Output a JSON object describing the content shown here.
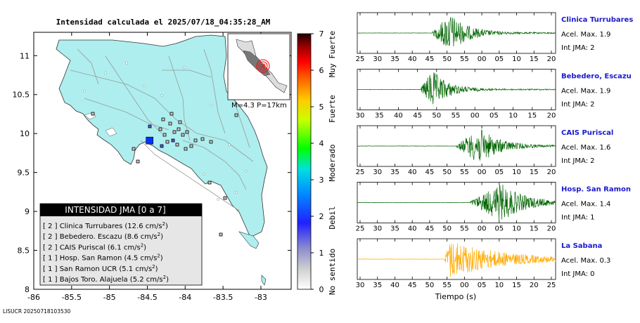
{
  "map": {
    "title": "Intensidad calculada el 2025/07/18_04:35:28_AM",
    "footer": "LISUCR 20250718103530",
    "inset_label": "M=4.3 P=17km",
    "legend": {
      "title": "INTENSIDAD JMA [0 a 7]",
      "items": [
        {
          "level": "[ 2 ]",
          "text": "Clinica Turrubares (12.6 cm/s",
          "sup": "2",
          "close": ")"
        },
        {
          "level": "[ 2 ]",
          "text": "Bebedero. Escazu (8.6 cm/s",
          "sup": "2",
          "close": ")"
        },
        {
          "level": "[ 2 ]",
          "text": "CAIS Puriscal (6.1 cm/s",
          "sup": "2",
          "close": ")"
        },
        {
          "level": "[ 1 ]",
          "text": "Hosp. San Ramon (4.5 cm/s",
          "sup": "2",
          "close": ")"
        },
        {
          "level": "[ 1 ]",
          "text": "San Ramon UCR (5.1 cm/s",
          "sup": "2",
          "close": ")"
        },
        {
          "level": "[ 1 ]",
          "text": "Bajos Toro. Alajuela (5.2 cm/s",
          "sup": "2",
          "close": ")"
        }
      ]
    },
    "colorbar": {
      "ticks": [
        "0",
        "1",
        "2",
        "3",
        "4",
        "5",
        "6",
        "7"
      ],
      "labels": [
        "No sentido",
        "Debil",
        "Moderado",
        "Fuerte",
        "Muy Fuerte"
      ]
    },
    "colors": {
      "land": "#aeeeee",
      "epicenter": "#0033ff",
      "legend_header": "#000000"
    }
  },
  "chart_data": [
    {
      "type": "scatter",
      "role": "map",
      "xlim": [
        -86,
        -82.6
      ],
      "ylim": [
        8,
        11.3
      ],
      "xticks": [
        -86,
        -85.5,
        -85,
        -84.5,
        -84,
        -83.5,
        -83
      ],
      "xtick_labels": [
        "-86",
        "-85.5",
        "-85",
        "-84.5",
        "-84",
        "-83.5",
        "-83"
      ],
      "yticks": [
        8,
        8.5,
        9,
        9.5,
        10,
        10.5,
        11
      ],
      "ytick_labels": [
        "8",
        "8.5",
        "9",
        "9.5",
        "10",
        "10.5",
        "11"
      ],
      "epicenter": {
        "lon": -84.47,
        "lat": 9.91
      }
    }
  ],
  "waveforms": {
    "xlabel": "Tiempo (s)",
    "panels": [
      {
        "name": "Clinica Turrubares",
        "acel": "Acel. Max. 1.9",
        "int": "Int JMA: 2",
        "color": "#006400",
        "ticks": [
          "25",
          "30",
          "35",
          "40",
          "45",
          "50",
          "55",
          "00",
          "05",
          "10",
          "15",
          "20"
        ],
        "onset": 0.38,
        "peak": 0.47,
        "amp": 1.0,
        "decay": 0.09,
        "width": 0.55
      },
      {
        "name": "Bebedero, Escazu",
        "acel": "Acel. Max. 1.9",
        "int": "Int JMA: 2",
        "color": "#006400",
        "ticks": [
          "30",
          "35",
          "40",
          "45",
          "50",
          "55",
          "00",
          "05",
          "10",
          "15",
          "20"
        ],
        "onset": 0.32,
        "peak": 0.38,
        "amp": 1.0,
        "decay": 0.08,
        "width": 0.5
      },
      {
        "name": "CAIS Puriscal",
        "acel": "Acel. Max. 1.6",
        "int": "Int JMA: 2",
        "color": "#006400",
        "ticks": [
          "25",
          "30",
          "35",
          "40",
          "45",
          "50",
          "55",
          "00",
          "05",
          "10",
          "15",
          "20"
        ],
        "onset": 0.5,
        "peak": 0.62,
        "amp": 0.9,
        "decay": 0.1,
        "width": 0.5
      },
      {
        "name": "Hosp. San Ramon",
        "acel": "Acel. Max. 1.4",
        "int": "Int JMA: 1",
        "color": "#006400",
        "ticks": [
          "25",
          "30",
          "35",
          "40",
          "45",
          "50",
          "55",
          "00",
          "05",
          "10",
          "15",
          "20"
        ],
        "onset": 0.57,
        "peak": 0.73,
        "amp": 0.95,
        "decay": 0.12,
        "width": 0.45
      },
      {
        "name": "La Sabana",
        "acel": "Acel. Max. 0.3",
        "int": "Int JMA: 0",
        "color": "#ffaa00",
        "ticks": [
          "30",
          "35",
          "40",
          "45",
          "50",
          "55",
          "00",
          "05",
          "10",
          "15",
          "20",
          "25"
        ],
        "onset": 0.44,
        "peak": 0.47,
        "amp": 1.0,
        "decay": 0.25,
        "width": 0.56
      }
    ]
  }
}
